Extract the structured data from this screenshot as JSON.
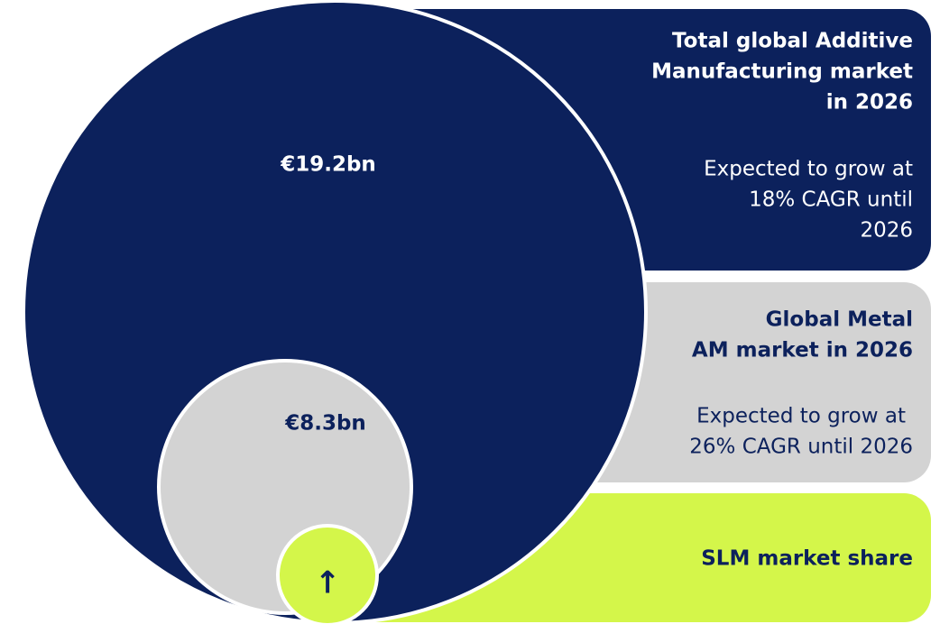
{
  "total": {
    "value_label": "€19.2bn",
    "title": "Total global Additive Manufacturing market in 2026",
    "title_lines": [
      "Total global Additive",
      "Manufacturing market",
      "in 2026"
    ],
    "note_lines": [
      "Expected to grow at",
      "18% CAGR until",
      "2026"
    ]
  },
  "metal": {
    "value_label": "€8.3bn",
    "title_lines": [
      "Global Metal",
      "AM market in 2026"
    ],
    "note_lines": [
      "Expected to grow at",
      "26% CAGR until 2026"
    ]
  },
  "slm": {
    "title": "SLM market share",
    "icon": "↑"
  }
}
